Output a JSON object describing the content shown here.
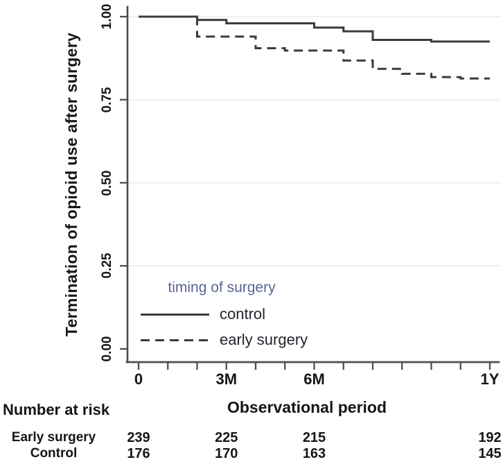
{
  "colors": {
    "line": "#3b3b3d",
    "axis": "#4d4d4f",
    "grid": "#e7eff2",
    "legend_title": "#5b6596"
  },
  "chart": {
    "y_axis": {
      "label": "Termination of opioid use after surgery",
      "ticks": [
        {
          "label": "1.00",
          "value": 1.0
        },
        {
          "label": "0.75",
          "value": 0.75
        },
        {
          "label": "0.50",
          "value": 0.5
        },
        {
          "label": "0.25",
          "value": 0.25
        },
        {
          "label": "0.00",
          "value": 0.0
        }
      ]
    },
    "x_axis": {
      "label": "Observational period",
      "ticks": [
        {
          "label": "0",
          "month": 0
        },
        {
          "label": "3M",
          "month": 3
        },
        {
          "label": "6M",
          "month": 6
        },
        {
          "label": "1Y",
          "month": 12
        }
      ]
    },
    "legend": {
      "title": "timing of surgery",
      "items": [
        {
          "label": "control",
          "style": "solid"
        },
        {
          "label": "early surgery",
          "style": "dashed"
        }
      ]
    }
  },
  "risk_table": {
    "title": "Number at risk",
    "column_months": [
      0,
      3,
      6,
      12
    ],
    "rows": [
      {
        "label": "Early surgery",
        "values": [
          "239",
          "225",
          "215",
          "192"
        ]
      },
      {
        "label": "Control",
        "values": [
          "176",
          "170",
          "163",
          "145"
        ]
      }
    ]
  },
  "chart_data": {
    "type": "line",
    "subtype": "kaplan-meier-step",
    "title": "",
    "xlabel": "Observational period",
    "ylabel": "Termination of opioid use after surgery",
    "xlim_months": [
      0,
      12
    ],
    "ylim": [
      0.0,
      1.0
    ],
    "grid": "on",
    "grid_values": [
      1.0,
      0.75,
      0.5,
      0.25
    ],
    "minor_tick_months": [
      0,
      1,
      2,
      3,
      4,
      5,
      6,
      7,
      8,
      9,
      10,
      11,
      12
    ],
    "legend_position": "inside-bottom-left",
    "series": [
      {
        "name": "control",
        "style": "solid",
        "points": [
          [
            0,
            1.0
          ],
          [
            2,
            0.99
          ],
          [
            3,
            0.98
          ],
          [
            6,
            0.967
          ],
          [
            7,
            0.956
          ],
          [
            8,
            0.93
          ],
          [
            10,
            0.925
          ],
          [
            12,
            0.925
          ]
        ]
      },
      {
        "name": "early surgery",
        "style": "dashed",
        "points": [
          [
            0,
            1.0
          ],
          [
            2,
            0.94
          ],
          [
            4,
            0.905
          ],
          [
            5,
            0.898
          ],
          [
            7,
            0.868
          ],
          [
            8,
            0.843
          ],
          [
            9,
            0.828
          ],
          [
            10,
            0.818
          ],
          [
            11,
            0.814
          ],
          [
            12,
            0.814
          ]
        ]
      }
    ]
  }
}
